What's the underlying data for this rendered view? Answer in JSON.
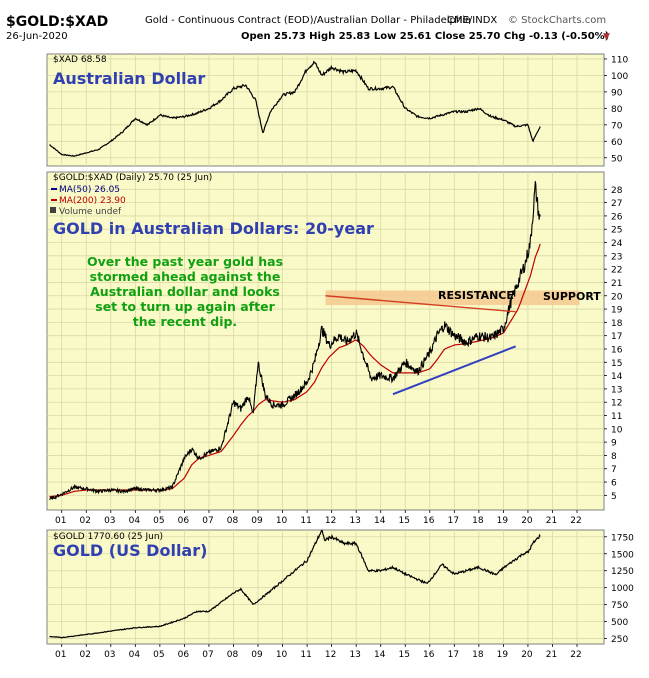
{
  "header": {
    "symbol": "$GOLD:$XAD",
    "description": "Gold - Continuous Contract (EOD)/Australian Dollar - Philadelphia",
    "exchange": "CME/INDX",
    "source": "© StockCharts.com",
    "date": "26-Jun-2020",
    "ohlc": "Open 25.73  High 25.83  Low 25.61  Close 25.70  Chg -0.13 (-0.50%)",
    "chg_arrow": "▼"
  },
  "colors": {
    "panel_bg": "#fafac8",
    "grid": "#d8d8a8",
    "price_line": "#000000",
    "ma_fast": "#000080",
    "ma_slow": "#c00000",
    "annotation_blue": "#3040b0",
    "annotation_green": "#10a010",
    "resistance_band": "#f5c890",
    "support_line": "#d04020",
    "trend_line": "#3040c0"
  },
  "chart_data": [
    {
      "type": "line",
      "panel": "top",
      "legend": "$XAD 68.58",
      "title": "Australian Dollar",
      "ylim": [
        45,
        113
      ],
      "yticks": [
        50,
        60,
        70,
        80,
        90,
        100,
        110
      ],
      "x": [
        2000.5,
        2001.0,
        2001.5,
        2002.0,
        2002.5,
        2003.0,
        2003.5,
        2004.0,
        2004.5,
        2005.0,
        2005.5,
        2006.0,
        2006.5,
        2007.0,
        2007.5,
        2008.0,
        2008.5,
        2008.9,
        2009.2,
        2009.5,
        2010.0,
        2010.5,
        2011.0,
        2011.3,
        2011.6,
        2012.0,
        2012.5,
        2013.0,
        2013.5,
        2014.0,
        2014.5,
        2015.0,
        2015.5,
        2016.0,
        2016.5,
        2017.0,
        2017.5,
        2018.0,
        2018.5,
        2019.0,
        2019.5,
        2020.0,
        2020.2,
        2020.5
      ],
      "values": [
        58,
        52,
        51,
        53,
        55,
        60,
        66,
        74,
        70,
        76,
        74,
        75,
        77,
        80,
        85,
        92,
        94,
        85,
        65,
        78,
        88,
        90,
        104,
        108,
        100,
        105,
        102,
        103,
        92,
        92,
        93,
        80,
        75,
        74,
        76,
        78,
        78,
        80,
        75,
        73,
        69,
        70,
        60,
        69
      ]
    },
    {
      "type": "line",
      "panel": "middle",
      "title": "GOLD in Australian Dollars: 20-year",
      "legend": [
        {
          "name": "$GOLD:$XAD (Daily) 25.70 (25 Jun)",
          "color": "#000000"
        },
        {
          "name": "MA(50) 26.05",
          "color": "#000080"
        },
        {
          "name": "MA(200) 23.90",
          "color": "#c00000"
        },
        {
          "name": "Volume undef",
          "color": "#404040"
        }
      ],
      "ylim": [
        3.9,
        29.3
      ],
      "yticks": [
        5,
        6,
        7,
        8,
        9,
        10,
        11,
        12,
        13,
        14,
        15,
        16,
        17,
        18,
        19,
        20,
        21,
        22,
        23,
        24,
        25,
        26,
        27,
        28
      ],
      "x": [
        2000.5,
        2001.0,
        2001.5,
        2002.0,
        2002.5,
        2003.0,
        2003.5,
        2004.0,
        2004.5,
        2005.0,
        2005.5,
        2006.0,
        2006.3,
        2006.6,
        2007.0,
        2007.5,
        2008.0,
        2008.3,
        2008.6,
        2008.8,
        2009.0,
        2009.3,
        2009.6,
        2010.0,
        2010.5,
        2011.0,
        2011.3,
        2011.6,
        2011.9,
        2012.3,
        2012.6,
        2013.0,
        2013.3,
        2013.6,
        2014.0,
        2014.5,
        2015.0,
        2015.5,
        2016.0,
        2016.3,
        2016.6,
        2017.0,
        2017.5,
        2018.0,
        2018.5,
        2019.0,
        2019.3,
        2019.6,
        2019.9,
        2020.1,
        2020.3,
        2020.45,
        2020.5
      ],
      "values": [
        4.7,
        5.1,
        5.6,
        5.5,
        5.3,
        5.4,
        5.3,
        5.5,
        5.4,
        5.4,
        5.6,
        7.8,
        8.5,
        7.8,
        8.2,
        8.6,
        12.0,
        11.5,
        12.5,
        11.0,
        15.0,
        12.5,
        11.8,
        11.8,
        12.5,
        13.5,
        15.0,
        17.5,
        16.3,
        17.0,
        16.5,
        17.2,
        15.5,
        13.8,
        14.0,
        13.8,
        15.0,
        14.3,
        15.7,
        17.0,
        17.8,
        17.0,
        16.5,
        17.0,
        16.8,
        17.5,
        19.5,
        21.0,
        22.5,
        24.0,
        28.2,
        26.0,
        25.7
      ],
      "ma200": [
        4.9,
        5.0,
        5.3,
        5.4,
        5.4,
        5.4,
        5.4,
        5.4,
        5.4,
        5.4,
        5.5,
        6.3,
        7.3,
        7.8,
        8.0,
        8.3,
        9.5,
        10.3,
        11.0,
        11.3,
        11.8,
        12.2,
        12.1,
        12.0,
        12.2,
        12.8,
        13.5,
        14.6,
        15.4,
        16.1,
        16.3,
        16.7,
        16.2,
        15.5,
        14.8,
        14.2,
        14.2,
        14.2,
        14.5,
        15.2,
        16.0,
        16.3,
        16.4,
        16.6,
        16.8,
        17.2,
        18.1,
        19.0,
        20.5,
        21.5,
        22.9,
        23.6,
        23.9
      ],
      "ylabel": "",
      "annotations": {
        "commentary": "Over the past year gold has\nstormed ahead against the\nAustralian dollar and looks\nset to turn up again after\nthe recent dip.",
        "resistance_label": "RESISTANCE",
        "support_label": "SUPPORT"
      },
      "overlays": {
        "band": {
          "x0": 2011.75,
          "x1": 2022.1,
          "y0": 19.3,
          "y1": 20.4
        },
        "resistance_line": {
          "x0": 2011.75,
          "y0": 20.0,
          "x1": 2019.5,
          "y1": 18.8
        },
        "trend_line": {
          "x0": 2014.5,
          "y0": 12.6,
          "x1": 2019.5,
          "y1": 16.2
        }
      }
    },
    {
      "type": "line",
      "panel": "bottom",
      "legend": "$GOLD 1770.60 (25 Jun)",
      "title": "GOLD (US Dollar)",
      "ylim": [
        170,
        1850
      ],
      "yticks": [
        250,
        500,
        750,
        1000,
        1250,
        1500,
        1750
      ],
      "x": [
        2000.5,
        2001.0,
        2002.0,
        2003.0,
        2004.0,
        2005.0,
        2006.0,
        2006.5,
        2007.0,
        2008.0,
        2008.3,
        2008.8,
        2009.5,
        2010.0,
        2010.5,
        2011.0,
        2011.6,
        2011.7,
        2012.0,
        2012.5,
        2013.0,
        2013.5,
        2014.0,
        2014.5,
        2015.0,
        2015.9,
        2016.5,
        2017.0,
        2017.5,
        2018.0,
        2018.7,
        2019.0,
        2019.5,
        2019.8,
        2020.0,
        2020.2,
        2020.5
      ],
      "values": [
        280,
        265,
        310,
        360,
        410,
        430,
        550,
        650,
        650,
        920,
        980,
        750,
        950,
        1100,
        1250,
        1400,
        1850,
        1700,
        1750,
        1650,
        1650,
        1250,
        1250,
        1300,
        1200,
        1060,
        1340,
        1200,
        1250,
        1300,
        1190,
        1290,
        1420,
        1500,
        1520,
        1650,
        1770
      ]
    }
  ],
  "x_axis": {
    "min": 2000.4,
    "max": 2023.1,
    "ticks": [
      {
        "x": 2001,
        "label": "01"
      },
      {
        "x": 2002,
        "label": "02"
      },
      {
        "x": 2003,
        "label": "03"
      },
      {
        "x": 2004,
        "label": "04"
      },
      {
        "x": 2005,
        "label": "05"
      },
      {
        "x": 2006,
        "label": "06"
      },
      {
        "x": 2007,
        "label": "07"
      },
      {
        "x": 2008,
        "label": "08"
      },
      {
        "x": 2009,
        "label": "09"
      },
      {
        "x": 2010,
        "label": "10"
      },
      {
        "x": 2011,
        "label": "11"
      },
      {
        "x": 2012,
        "label": "12"
      },
      {
        "x": 2013,
        "label": "13"
      },
      {
        "x": 2014,
        "label": "14"
      },
      {
        "x": 2015,
        "label": "15"
      },
      {
        "x": 2016,
        "label": "16"
      },
      {
        "x": 2017,
        "label": "17"
      },
      {
        "x": 2018,
        "label": "18"
      },
      {
        "x": 2019,
        "label": "19"
      },
      {
        "x": 2020,
        "label": "20"
      },
      {
        "x": 2021,
        "label": "21"
      },
      {
        "x": 2022,
        "label": "22"
      }
    ]
  }
}
